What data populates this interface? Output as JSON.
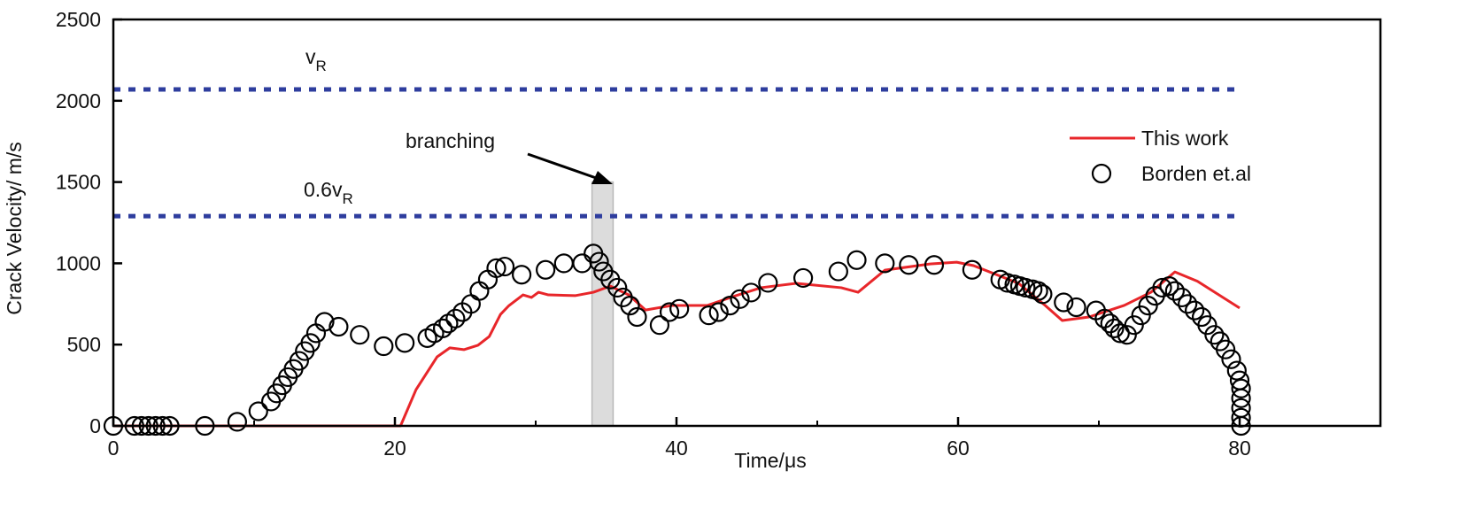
{
  "chart_data": {
    "type": "line",
    "title": "",
    "xlabel": "Time/μs",
    "ylabel": "Crack Velocity/ m/s",
    "xlim": [
      0,
      90
    ],
    "ylim": [
      0,
      2500
    ],
    "xticks": [
      0,
      20,
      40,
      60,
      80
    ],
    "yticks": [
      0,
      500,
      1000,
      1500,
      2000,
      2500
    ],
    "grid": false,
    "legend": "top-right",
    "series": [
      {
        "name": "This work",
        "style": "line",
        "color": "#e8262a",
        "x": [
          0,
          20.4,
          21.5,
          23,
          23.9,
          24.9,
          25.9,
          26.7,
          27.5,
          28.1,
          29.1,
          29.7,
          30.2,
          30.9,
          32.8,
          34.1,
          35.3,
          36.6,
          37.8,
          39.7,
          42.2,
          44,
          46,
          48.5,
          51.7,
          52.9,
          54.8,
          58,
          59.9,
          61.1,
          64.3,
          66.2,
          67.4,
          69.3,
          71.8,
          73.7,
          75.4,
          77,
          80
        ],
        "y": [
          0,
          0,
          223,
          425,
          480,
          469,
          496,
          550,
          686,
          740,
          806,
          790,
          822,
          806,
          801,
          822,
          860,
          806,
          713,
          741,
          741,
          795,
          850,
          877,
          850,
          822,
          958,
          996,
          1007,
          986,
          877,
          740,
          648,
          670,
          741,
          822,
          947,
          890,
          725
        ]
      },
      {
        "name": "Borden et.al",
        "style": "marker-circle-open",
        "color": "#000000",
        "x": [
          0,
          1.5,
          2,
          2.5,
          3,
          3.5,
          4,
          6.5,
          8.8,
          10.3,
          11.2,
          11.6,
          12,
          12.4,
          12.8,
          13.2,
          13.6,
          14,
          14.4,
          15,
          16,
          17.5,
          19.2,
          20.7,
          22.3,
          22.8,
          23.4,
          23.8,
          24.3,
          24.8,
          25.4,
          26,
          26.6,
          27.2,
          27.8,
          29,
          30.7,
          32,
          33.3,
          34.1,
          34.5,
          34.8,
          35.3,
          35.8,
          36.2,
          36.7,
          37.2,
          38.8,
          39.5,
          40.2,
          42.3,
          43,
          43.8,
          44.5,
          45.3,
          46.5,
          49,
          51.5,
          52.8,
          54.8,
          56.5,
          58.3,
          61,
          63,
          63.5,
          64,
          64.4,
          64.8,
          65.3,
          65.7,
          66,
          67.5,
          68.4,
          69.8,
          70.4,
          70.8,
          71.1,
          71.5,
          72,
          72.5,
          73,
          73.5,
          74,
          74.5,
          75,
          75.4,
          75.9,
          76.3,
          76.8,
          77.3,
          77.7,
          78.2,
          78.6,
          79,
          79.4,
          79.8,
          80,
          80.1,
          80.1,
          80.1,
          80.1,
          80.1
        ],
        "y": [
          0,
          0,
          0,
          0,
          0,
          0,
          0,
          0,
          25,
          90,
          150,
          200,
          250,
          300,
          350,
          400,
          460,
          510,
          570,
          640,
          610,
          560,
          490,
          510,
          540,
          570,
          600,
          630,
          660,
          700,
          750,
          830,
          900,
          970,
          980,
          930,
          960,
          1000,
          1000,
          1060,
          1010,
          950,
          900,
          850,
          790,
          740,
          670,
          620,
          700,
          720,
          680,
          700,
          740,
          780,
          820,
          880,
          910,
          950,
          1020,
          1000,
          990,
          990,
          960,
          900,
          880,
          870,
          860,
          850,
          840,
          830,
          810,
          760,
          730,
          710,
          660,
          630,
          600,
          570,
          560,
          620,
          680,
          740,
          800,
          850,
          860,
          830,
          790,
          750,
          710,
          670,
          620,
          560,
          520,
          470,
          410,
          340,
          280,
          230,
          170,
          110,
          50,
          0
        ]
      }
    ],
    "reference_lines": [
      {
        "label_main": "v",
        "label_sub": "R",
        "y": 2070,
        "color": "#2e3d9e",
        "style": "dotted"
      },
      {
        "label_main": "0.6v",
        "label_sub": "R",
        "y": 1290,
        "color": "#2e3d9e",
        "style": "dotted"
      }
    ],
    "annotations": [
      {
        "text": "branching",
        "band_x": [
          34,
          35.5
        ],
        "band_top": 1500,
        "band_color": "#dcdcdc"
      }
    ]
  }
}
